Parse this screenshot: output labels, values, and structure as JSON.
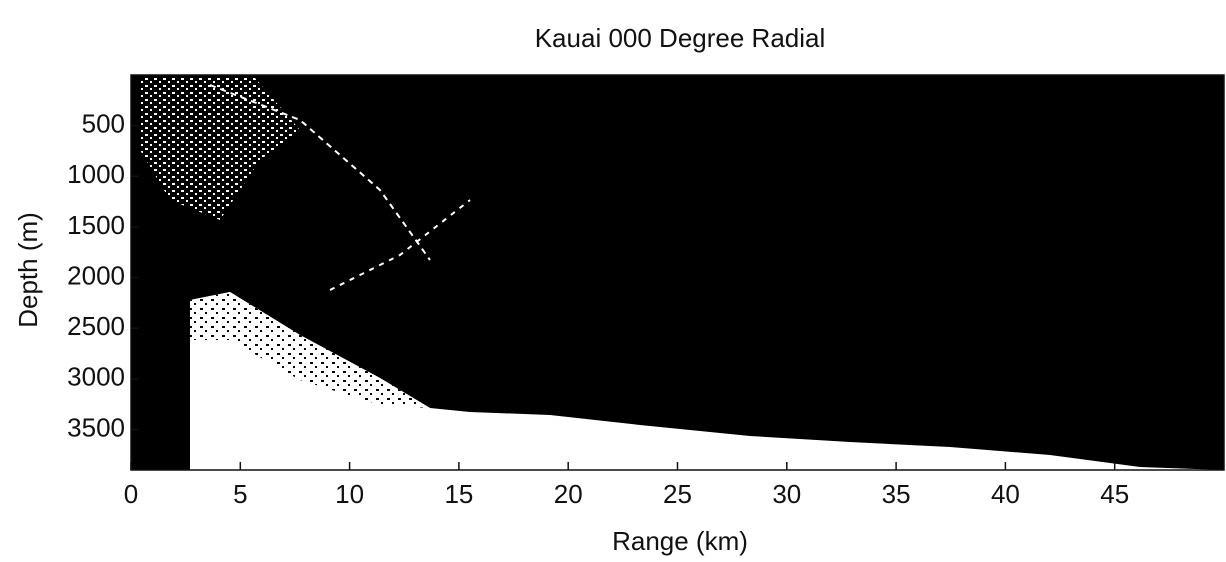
{
  "chart_data": {
    "type": "image",
    "title": "Kauai 000 Degree Radial",
    "x_label": "Range (km)",
    "y_label": "Depth (m)",
    "xlim": [
      0,
      50
    ],
    "xticks": [
      0,
      5,
      10,
      15,
      20,
      25,
      30,
      35,
      40,
      45
    ],
    "ylim": [
      3900,
      0
    ],
    "yticks": [
      500,
      1000,
      1500,
      2000,
      2500,
      3000,
      3500
    ]
  }
}
